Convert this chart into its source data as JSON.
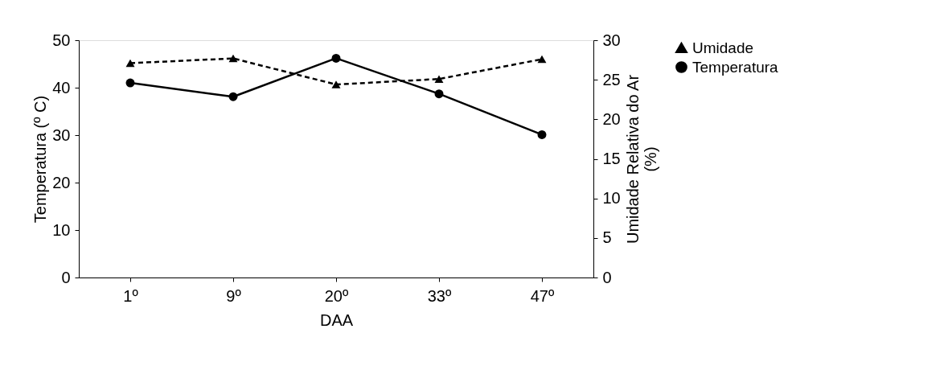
{
  "chart_data": {
    "type": "line",
    "xlabel": "DAA",
    "ylabel": "Temperatura (º C)",
    "y2label": "Umidade Relativa do Ar (%)",
    "categories": [
      "1º",
      "9º",
      "20º",
      "33º",
      "47º"
    ],
    "series": [
      {
        "name": "Umidade",
        "color": "#000000",
        "axis": "y2",
        "marker": "triangle",
        "line_style": "dashed",
        "values": [
          27.1,
          27.7,
          24.4,
          25.1,
          27.6
        ]
      },
      {
        "name": "Temperatura",
        "color": "#000000",
        "marker": "circle",
        "line_style": "solid",
        "values": [
          41.0,
          38.1,
          46.2,
          38.7,
          30.1
        ]
      }
    ],
    "ylim": [
      0,
      50
    ],
    "yticks": [
      0,
      10,
      20,
      30,
      40,
      50
    ],
    "y2lim": [
      0,
      30
    ],
    "y2ticks": [
      0,
      5,
      10,
      15,
      20,
      25,
      30
    ],
    "grid": false,
    "legend": "right"
  }
}
